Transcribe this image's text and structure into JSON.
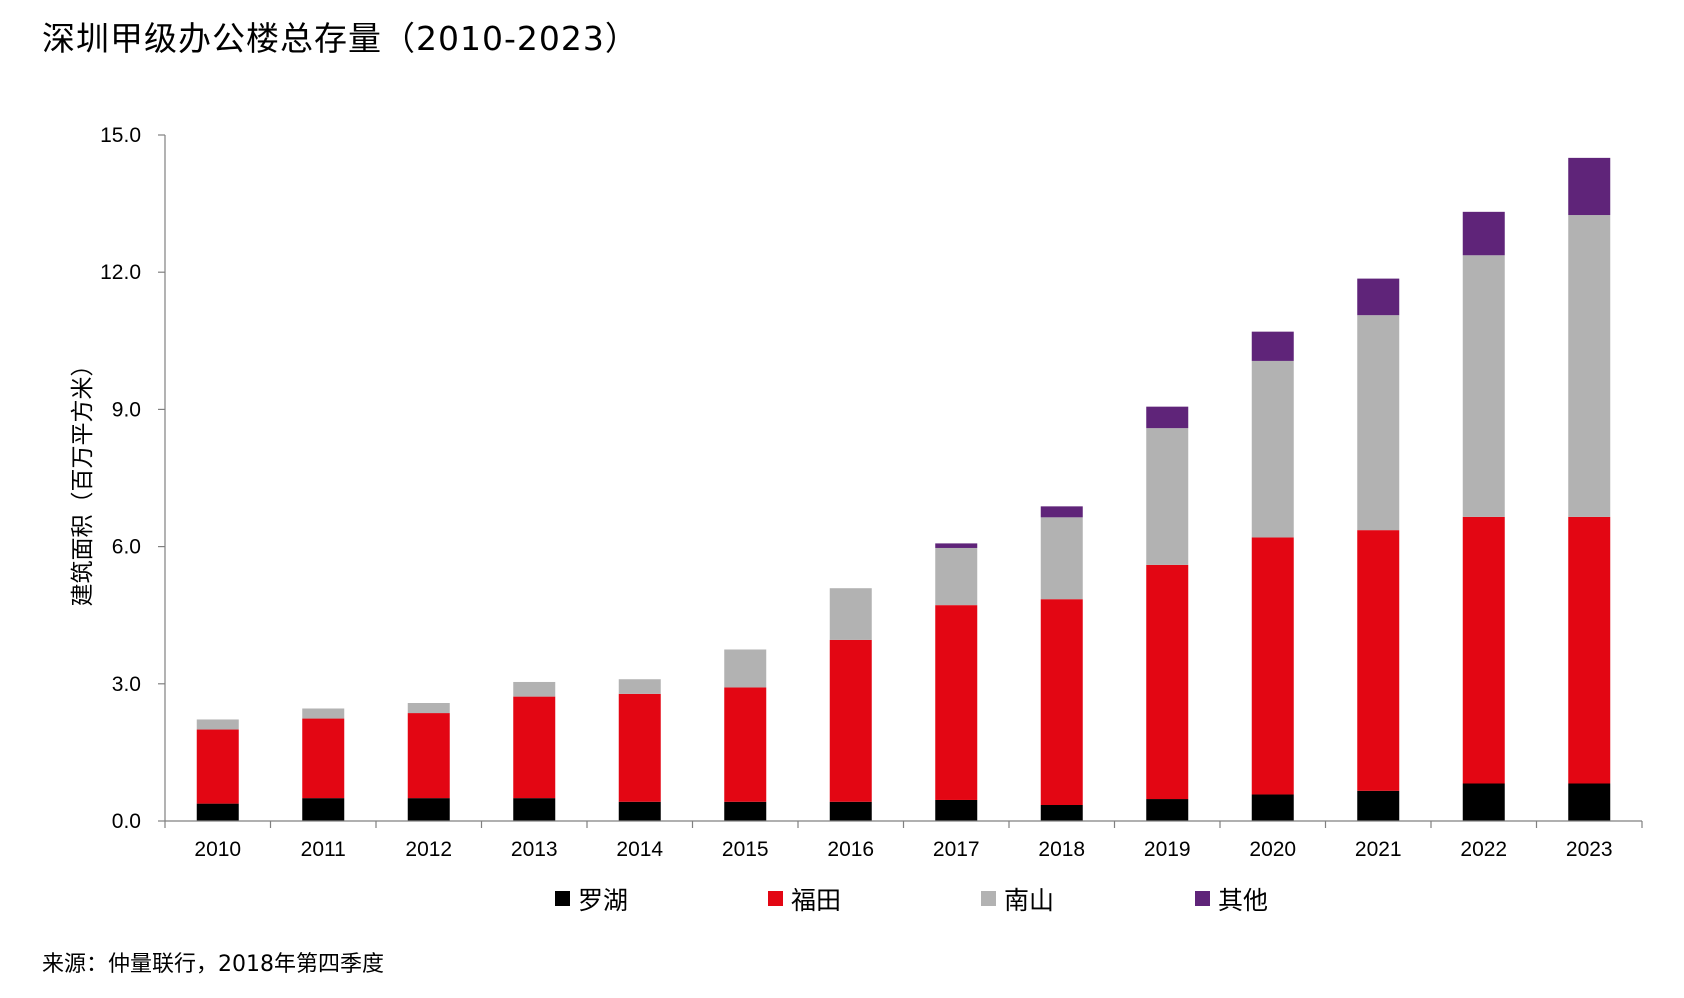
{
  "title": "深圳甲级办公楼总存量（2010-2023）",
  "source": "来源：仲量联行，2018年第四季度",
  "chart_data": {
    "type": "bar",
    "stacked": true,
    "title": "深圳甲级办公楼总存量（2010-2023）",
    "ylabel": "建筑面积（百万平方米）",
    "xlabel": "",
    "ylim": [
      0,
      15
    ],
    "yticks": [
      "0.0",
      "3.0",
      "6.0",
      "9.0",
      "12.0",
      "15.0"
    ],
    "grid": false,
    "legend_position": "bottom",
    "categories": [
      "2010",
      "2011",
      "2012",
      "2013",
      "2014",
      "2015",
      "2016",
      "2017",
      "2018",
      "2019",
      "2020",
      "2021",
      "2022",
      "2023"
    ],
    "series": [
      {
        "name": "罗湖",
        "color": "#000000",
        "values": [
          0.38,
          0.5,
          0.5,
          0.5,
          0.42,
          0.42,
          0.42,
          0.46,
          0.35,
          0.48,
          0.58,
          0.66,
          0.82,
          0.82
        ]
      },
      {
        "name": "福田",
        "color": "#e30613",
        "values": [
          1.62,
          1.74,
          1.86,
          2.22,
          2.36,
          2.5,
          3.54,
          4.26,
          4.5,
          5.12,
          5.62,
          5.7,
          5.83,
          5.83
        ]
      },
      {
        "name": "南山",
        "color": "#b2b2b2",
        "values": [
          0.22,
          0.22,
          0.22,
          0.32,
          0.32,
          0.83,
          1.13,
          1.25,
          1.79,
          2.99,
          3.86,
          4.7,
          5.72,
          6.6
        ]
      },
      {
        "name": "其他",
        "color": "#5f2479",
        "values": [
          0,
          0,
          0,
          0,
          0,
          0,
          0,
          0.1,
          0.24,
          0.47,
          0.64,
          0.8,
          0.95,
          1.25
        ]
      }
    ]
  }
}
